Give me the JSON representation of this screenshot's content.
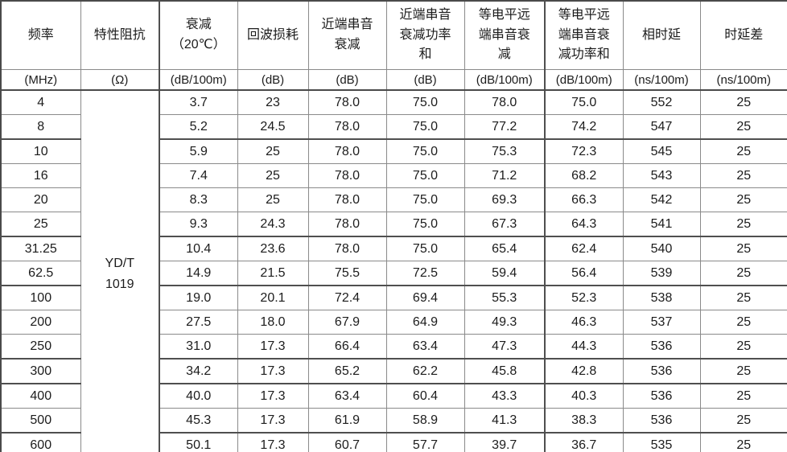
{
  "table": {
    "title_semantic": "cable-electrical-characteristics-table",
    "columns": [
      {
        "label": "频率",
        "unit": "(MHz)"
      },
      {
        "label": "特性阻抗",
        "unit": "(Ω)"
      },
      {
        "label": "衰减\n（20℃）",
        "unit": "(dB/100m)"
      },
      {
        "label": "回波损耗",
        "unit": "(dB)"
      },
      {
        "label": "近端串音\n衰减",
        "unit": "(dB)"
      },
      {
        "label": "近端串音\n衰减功率\n和",
        "unit": "(dB)"
      },
      {
        "label": "等电平远\n端串音衰\n减",
        "unit": "(dB/100m)"
      },
      {
        "label": "等电平远\n端串音衰\n减功率和",
        "unit": "(dB/100m)"
      },
      {
        "label": "相时延",
        "unit": "(ns/100m)"
      },
      {
        "label": "时延差",
        "unit": "(ns/100m)"
      }
    ],
    "impedance_standard": "YD/T\n1019",
    "rows": [
      [
        "4",
        "3.7",
        "23",
        "78.0",
        "75.0",
        "78.0",
        "75.0",
        "552",
        "25"
      ],
      [
        "8",
        "5.2",
        "24.5",
        "78.0",
        "75.0",
        "77.2",
        "74.2",
        "547",
        "25"
      ],
      [
        "10",
        "5.9",
        "25",
        "78.0",
        "75.0",
        "75.3",
        "72.3",
        "545",
        "25"
      ],
      [
        "16",
        "7.4",
        "25",
        "78.0",
        "75.0",
        "71.2",
        "68.2",
        "543",
        "25"
      ],
      [
        "20",
        "8.3",
        "25",
        "78.0",
        "75.0",
        "69.3",
        "66.3",
        "542",
        "25"
      ],
      [
        "25",
        "9.3",
        "24.3",
        "78.0",
        "75.0",
        "67.3",
        "64.3",
        "541",
        "25"
      ],
      [
        "31.25",
        "10.4",
        "23.6",
        "78.0",
        "75.0",
        "65.4",
        "62.4",
        "540",
        "25"
      ],
      [
        "62.5",
        "14.9",
        "21.5",
        "75.5",
        "72.5",
        "59.4",
        "56.4",
        "539",
        "25"
      ],
      [
        "100",
        "19.0",
        "20.1",
        "72.4",
        "69.4",
        "55.3",
        "52.3",
        "538",
        "25"
      ],
      [
        "200",
        "27.5",
        "18.0",
        "67.9",
        "64.9",
        "49.3",
        "46.3",
        "537",
        "25"
      ],
      [
        "250",
        "31.0",
        "17.3",
        "66.4",
        "63.4",
        "47.3",
        "44.3",
        "536",
        "25"
      ],
      [
        "300",
        "34.2",
        "17.3",
        "65.2",
        "62.2",
        "45.8",
        "42.8",
        "536",
        "25"
      ],
      [
        "400",
        "40.0",
        "17.3",
        "63.4",
        "60.4",
        "43.3",
        "40.3",
        "536",
        "25"
      ],
      [
        "500",
        "45.3",
        "17.3",
        "61.9",
        "58.9",
        "41.3",
        "38.3",
        "536",
        "25"
      ],
      [
        "600",
        "50.1",
        "17.3",
        "60.7",
        "57.7",
        "39.7",
        "36.7",
        "535",
        "25"
      ]
    ],
    "thick_top_row_indices": [
      2,
      6,
      8,
      11,
      12,
      14
    ],
    "colors": {
      "border_thin": "#8a8a8a",
      "border_thick": "#4a4a4a",
      "text": "#1c1c1c",
      "background": "#ffffff"
    }
  }
}
